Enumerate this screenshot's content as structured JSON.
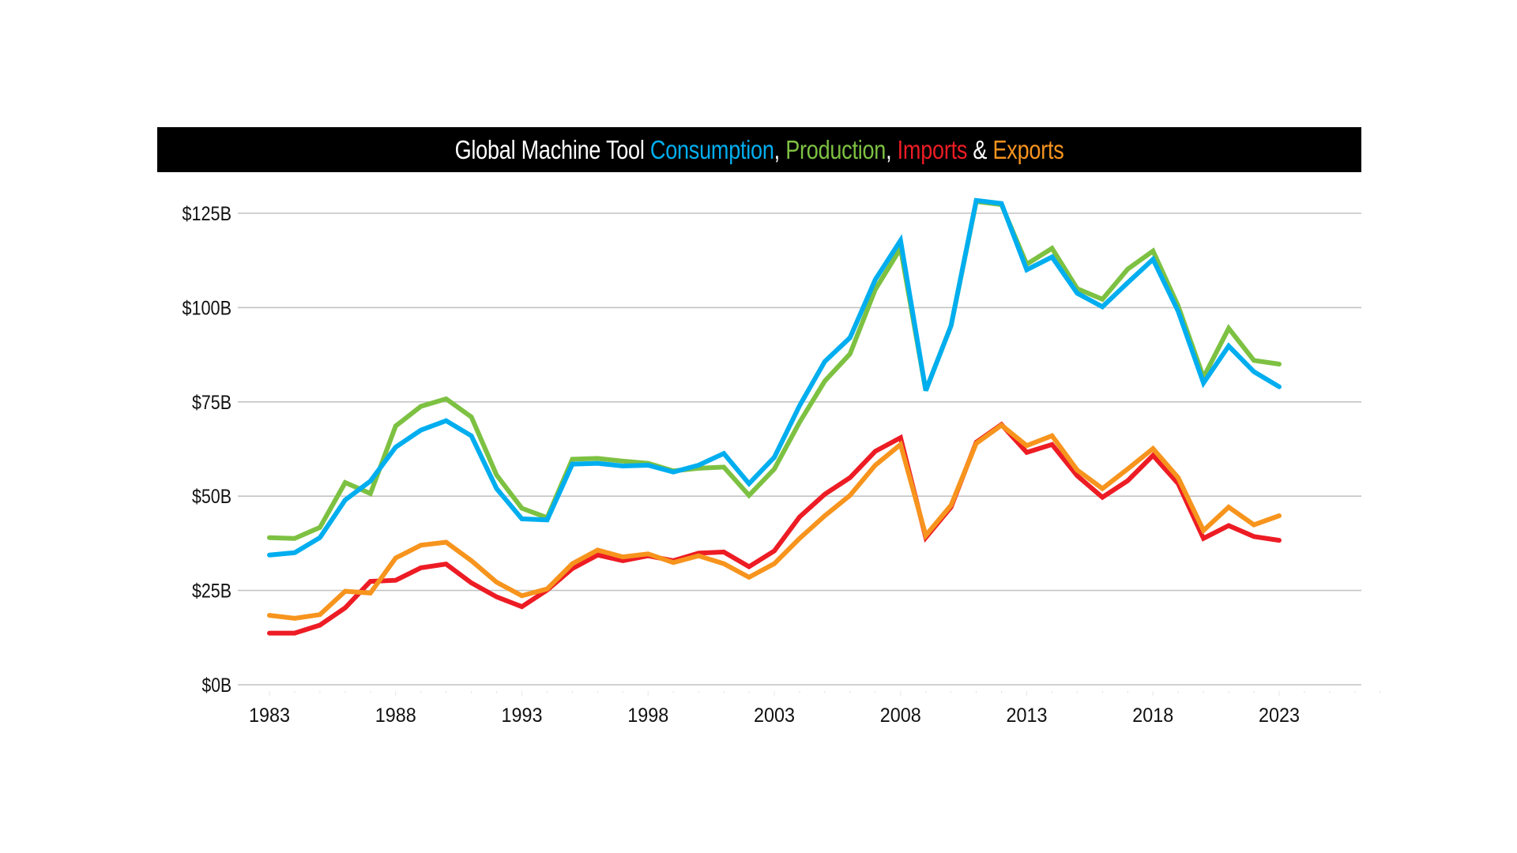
{
  "chart_data": {
    "type": "line",
    "title": {
      "segments": [
        {
          "text": "Global Machine Tool ",
          "color": "#ffffff"
        },
        {
          "text": "Consumption",
          "color": "#00aeef"
        },
        {
          "text": ", ",
          "color": "#ffffff"
        },
        {
          "text": "Production",
          "color": "#7dc142"
        },
        {
          "text": ", ",
          "color": "#ffffff"
        },
        {
          "text": "Imports",
          "color": "#ed1c24"
        },
        {
          "text": " & ",
          "color": "#ffffff"
        },
        {
          "text": "Exports",
          "color": "#f7941d"
        }
      ]
    },
    "xlabel": "",
    "ylabel": "",
    "xlim": [
      1983,
      2027
    ],
    "ylim": [
      0,
      125
    ],
    "grid": true,
    "x_ticks": [
      1983,
      1988,
      1993,
      1998,
      2003,
      2008,
      2013,
      2018,
      2023
    ],
    "x_tick_labels": [
      "1983",
      "1988",
      "1993",
      "1998",
      "2003",
      "2008",
      "2013",
      "2018",
      "2023"
    ],
    "y_ticks": [
      0,
      25,
      50,
      75,
      100,
      125
    ],
    "y_tick_labels": [
      "$0B",
      "$25B",
      "$50B",
      "$75B",
      "$100B",
      "$125B"
    ],
    "x": [
      1983,
      1984,
      1985,
      1986,
      1987,
      1988,
      1989,
      1990,
      1991,
      1992,
      1993,
      1994,
      1995,
      1996,
      1997,
      1998,
      1999,
      2000,
      2001,
      2002,
      2003,
      2004,
      2005,
      2006,
      2007,
      2008,
      2009,
      2010,
      2011,
      2012,
      2013,
      2014,
      2015,
      2016,
      2017,
      2018,
      2019,
      2020,
      2021,
      2022,
      2023
    ],
    "series": [
      {
        "name": "Production",
        "color": "#7dc142",
        "values": [
          39.0,
          38.8,
          41.7,
          53.6,
          50.7,
          68.6,
          73.8,
          75.8,
          71.0,
          55.6,
          46.8,
          44.3,
          59.8,
          60.0,
          59.3,
          58.7,
          56.7,
          57.4,
          57.7,
          50.2,
          57.2,
          69.6,
          80.5,
          87.7,
          104.8,
          115.7,
          78.0,
          95.2,
          128.1,
          127.3,
          111.5,
          115.7,
          105.0,
          102.2,
          110.2,
          115.0,
          100.4,
          81.5,
          94.5,
          86.0,
          85.0
        ]
      },
      {
        "name": "Consumption",
        "color": "#00aeef",
        "values": [
          34.4,
          35.0,
          39.0,
          49.0,
          54.0,
          63.0,
          67.5,
          70.0,
          66.0,
          52.0,
          44.0,
          43.7,
          58.5,
          58.7,
          58.0,
          58.2,
          56.4,
          58.2,
          61.3,
          53.3,
          60.3,
          74.0,
          85.7,
          92.0,
          107.4,
          117.8,
          78.0,
          95.2,
          128.4,
          127.6,
          110.0,
          113.4,
          103.8,
          100.2,
          106.6,
          112.8,
          99.0,
          80.0,
          89.8,
          83.0,
          79.0
        ]
      },
      {
        "name": "Imports",
        "color": "#ed1c24",
        "values": [
          13.7,
          13.7,
          15.8,
          20.4,
          27.4,
          27.7,
          31.0,
          32.0,
          27.0,
          23.3,
          20.7,
          25.1,
          30.8,
          34.4,
          32.9,
          34.2,
          32.9,
          34.9,
          35.2,
          31.3,
          35.5,
          44.5,
          50.5,
          54.9,
          61.9,
          65.5,
          39.0,
          47.1,
          64.3,
          69.0,
          61.6,
          63.7,
          55.4,
          49.7,
          54.1,
          60.8,
          53.3,
          38.8,
          42.2,
          39.3,
          38.3
        ]
      },
      {
        "name": "Exports",
        "color": "#f7941d",
        "values": [
          18.4,
          17.6,
          18.6,
          24.8,
          24.3,
          33.6,
          37.0,
          37.8,
          32.9,
          27.2,
          23.6,
          25.4,
          32.1,
          35.7,
          33.9,
          34.7,
          32.4,
          34.2,
          32.1,
          28.5,
          32.1,
          38.8,
          44.8,
          50.2,
          58.2,
          63.7,
          39.6,
          47.6,
          64.0,
          68.8,
          63.4,
          66.0,
          56.9,
          52.0,
          57.2,
          62.6,
          54.9,
          40.9,
          47.1,
          42.4,
          44.8
        ]
      }
    ],
    "legend": "inline-title"
  }
}
